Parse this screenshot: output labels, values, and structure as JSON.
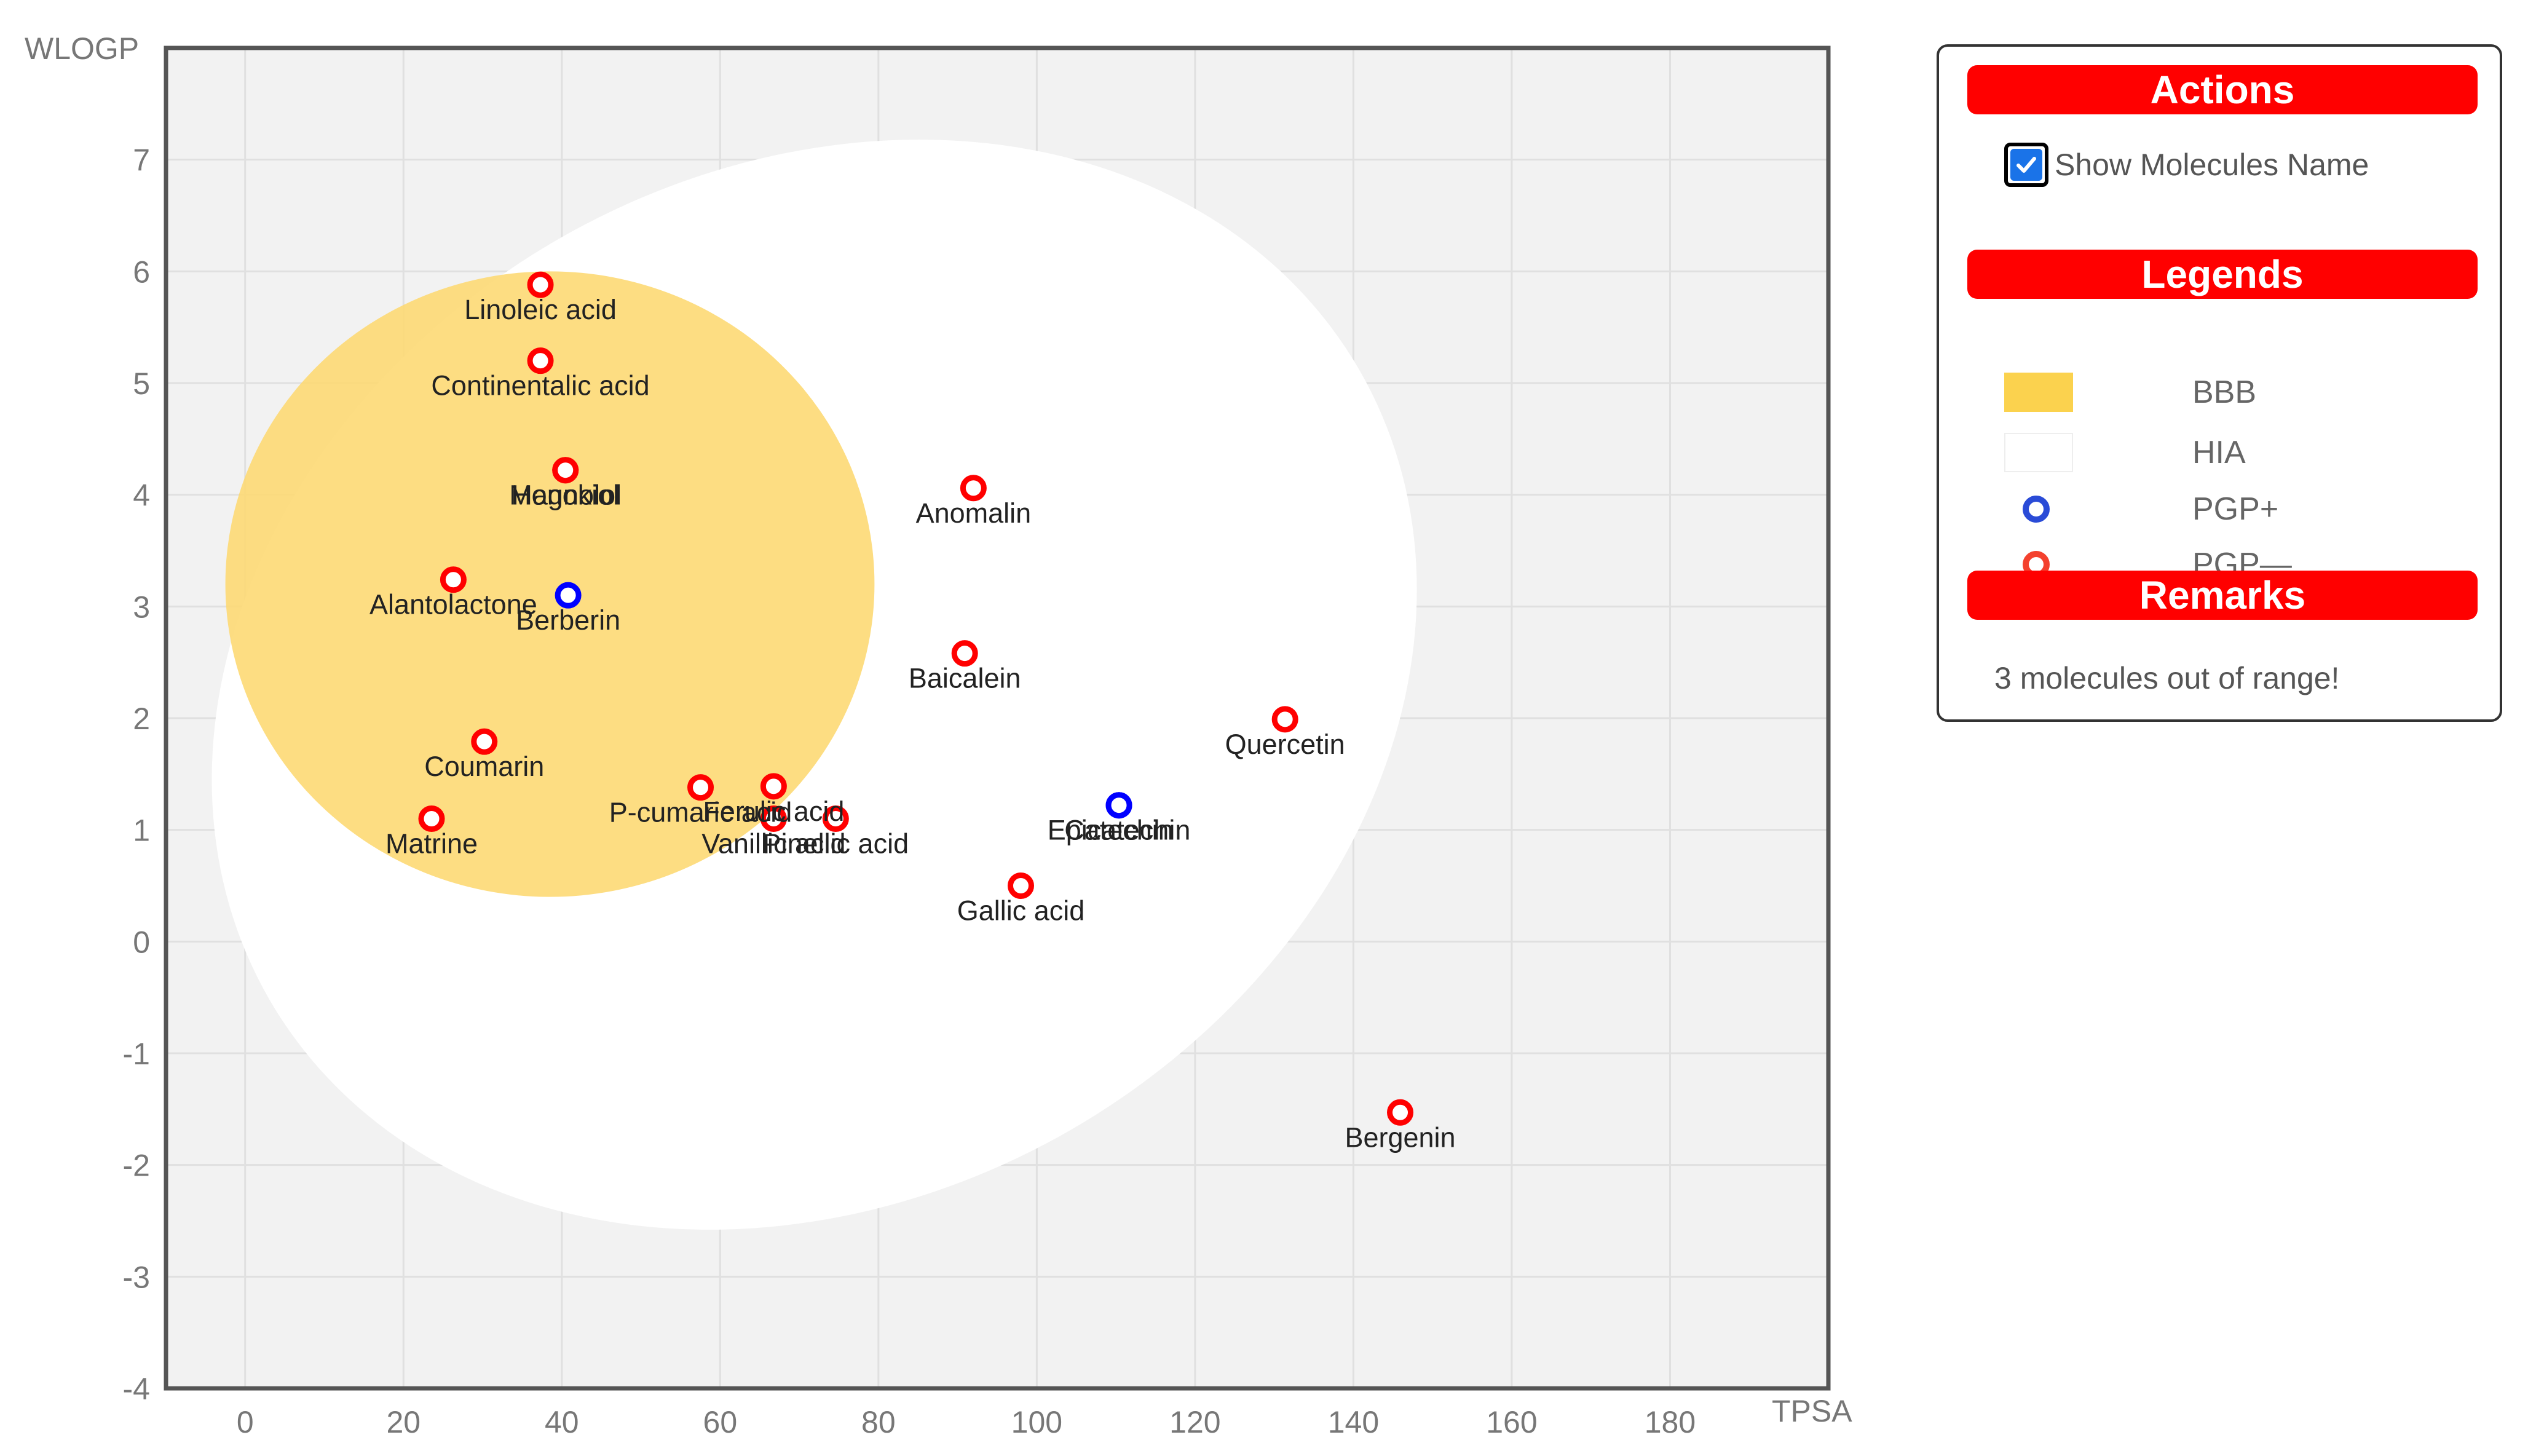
{
  "chart_data": {
    "type": "scatter",
    "xlabel": "TPSA",
    "ylabel": "WLOGP",
    "xlim": [
      -10,
      200
    ],
    "ylim": [
      -4,
      8
    ],
    "x_ticks": [
      0,
      20,
      40,
      60,
      80,
      100,
      120,
      140,
      160,
      180
    ],
    "y_ticks": [
      -4,
      -3,
      -2,
      -1,
      0,
      1,
      2,
      3,
      4,
      5,
      6,
      7
    ],
    "grid": true,
    "regions": {
      "hia": {
        "name": "HIA",
        "center": [
          71.9,
          2.3
        ],
        "rx": 79.5,
        "ry": 4.6,
        "rotation_deg": -30
      },
      "bbb": {
        "name": "BBB",
        "center": [
          38.5,
          3.2
        ],
        "rx": 41,
        "ry": 2.8
      }
    },
    "series": [
      {
        "name": "PGP-",
        "color": "#ff0000",
        "points": [
          {
            "name": "Linoleic acid",
            "x": 37.3,
            "y": 5.88
          },
          {
            "name": "Continentalic acid",
            "x": 37.3,
            "y": 5.2
          },
          {
            "name": "Magnolol",
            "x": 40.46,
            "y": 4.22
          },
          {
            "name": "Honokiol",
            "x": 40.46,
            "y": 4.22
          },
          {
            "name": "Anomalin",
            "x": 92.0,
            "y": 4.06
          },
          {
            "name": "Alantolactone",
            "x": 26.3,
            "y": 3.24
          },
          {
            "name": "Baicalein",
            "x": 90.9,
            "y": 2.58
          },
          {
            "name": "Quercetin",
            "x": 131.36,
            "y": 1.99
          },
          {
            "name": "Coumarin",
            "x": 30.21,
            "y": 1.79
          },
          {
            "name": "P-cumaric acid",
            "x": 57.53,
            "y": 1.38
          },
          {
            "name": "Ferulic acid",
            "x": 66.76,
            "y": 1.39
          },
          {
            "name": "Vanillic acid",
            "x": 66.76,
            "y": 1.1
          },
          {
            "name": "Pinellic acid",
            "x": 74.6,
            "y": 1.1
          },
          {
            "name": "Matrine",
            "x": 23.55,
            "y": 1.1
          },
          {
            "name": "Gallic acid",
            "x": 97.99,
            "y": 0.5
          },
          {
            "name": "Bergenin",
            "x": 145.91,
            "y": -1.53
          }
        ]
      },
      {
        "name": "PGP+",
        "color": "#0000ff",
        "points": [
          {
            "name": "Berberin",
            "x": 40.8,
            "y": 3.1
          },
          {
            "name": "Catechin",
            "x": 110.38,
            "y": 1.22
          },
          {
            "name": "Epicatechin",
            "x": 110.38,
            "y": 1.22
          }
        ]
      }
    ]
  },
  "panel": {
    "actions_title": "Actions",
    "show_names_label": "Show Molecules Name",
    "show_names_checked": true,
    "legends_title": "Legends",
    "legend": [
      {
        "label": "BBB",
        "color": "#fbd24e"
      },
      {
        "label": "HIA",
        "color": "#ffffff"
      },
      {
        "label": "PGP+",
        "color": "#2a4bd7"
      },
      {
        "label": "PGP—",
        "color": "#f4412e"
      }
    ],
    "remarks_title": "Remarks",
    "remarks_text": "3 molecules out of range!"
  },
  "colors": {
    "header_red": "#ff0000",
    "plot_bg": "#f2f2f2",
    "bbb_yellow": "#fdd974"
  }
}
